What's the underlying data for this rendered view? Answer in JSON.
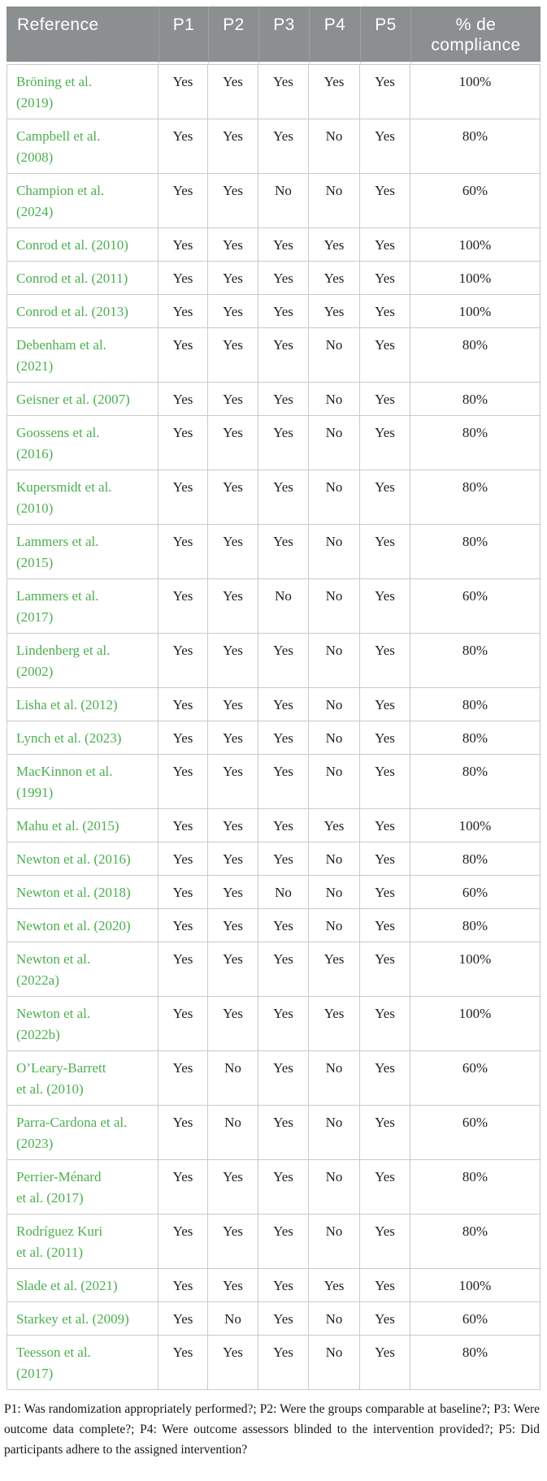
{
  "colors": {
    "header_bg": "#8b8f90",
    "header_text": "#ffffff",
    "link_green": "#4caf50",
    "cell_border": "#c9caca"
  },
  "table": {
    "columns": [
      "Reference",
      "P1",
      "P2",
      "P3",
      "P4",
      "P5",
      "% de compliance"
    ],
    "rows": [
      {
        "reference": "Bröning et al.\n(2019)",
        "values": [
          "Yes",
          "Yes",
          "Yes",
          "Yes",
          "Yes"
        ],
        "compliance": "100%"
      },
      {
        "reference": "Campbell et al.\n(2008)",
        "values": [
          "Yes",
          "Yes",
          "Yes",
          "No",
          "Yes"
        ],
        "compliance": "80%"
      },
      {
        "reference": "Champion et al.\n(2024)",
        "values": [
          "Yes",
          "Yes",
          "No",
          "No",
          "Yes"
        ],
        "compliance": "60%"
      },
      {
        "reference": "Conrod et al. (2010)",
        "values": [
          "Yes",
          "Yes",
          "Yes",
          "Yes",
          "Yes"
        ],
        "compliance": "100%"
      },
      {
        "reference": "Conrod et al. (2011)",
        "values": [
          "Yes",
          "Yes",
          "Yes",
          "Yes",
          "Yes"
        ],
        "compliance": "100%"
      },
      {
        "reference": "Conrod et al. (2013)",
        "values": [
          "Yes",
          "Yes",
          "Yes",
          "Yes",
          "Yes"
        ],
        "compliance": "100%"
      },
      {
        "reference": "Debenham et al.\n(2021)",
        "values": [
          "Yes",
          "Yes",
          "Yes",
          "No",
          "Yes"
        ],
        "compliance": "80%"
      },
      {
        "reference": "Geisner et al. (2007)",
        "values": [
          "Yes",
          "Yes",
          "Yes",
          "No",
          "Yes"
        ],
        "compliance": "80%"
      },
      {
        "reference": "Goossens et al.\n(2016)",
        "values": [
          "Yes",
          "Yes",
          "Yes",
          "No",
          "Yes"
        ],
        "compliance": "80%"
      },
      {
        "reference": "Kupersmidt et al.\n(2010)",
        "values": [
          "Yes",
          "Yes",
          "Yes",
          "No",
          "Yes"
        ],
        "compliance": "80%"
      },
      {
        "reference": "Lammers et al.\n(2015)",
        "values": [
          "Yes",
          "Yes",
          "Yes",
          "No",
          "Yes"
        ],
        "compliance": "80%"
      },
      {
        "reference": "Lammers et al.\n(2017)",
        "values": [
          "Yes",
          "Yes",
          "No",
          "No",
          "Yes"
        ],
        "compliance": "60%"
      },
      {
        "reference": "Lindenberg et al.\n(2002)",
        "values": [
          "Yes",
          "Yes",
          "Yes",
          "No",
          "Yes"
        ],
        "compliance": "80%"
      },
      {
        "reference": "Lisha et al. (2012)",
        "values": [
          "Yes",
          "Yes",
          "Yes",
          "No",
          "Yes"
        ],
        "compliance": "80%"
      },
      {
        "reference": "Lynch et al. (2023)",
        "values": [
          "Yes",
          "Yes",
          "Yes",
          "No",
          "Yes"
        ],
        "compliance": "80%"
      },
      {
        "reference": "MacKinnon et al.\n(1991)",
        "values": [
          "Yes",
          "Yes",
          "Yes",
          "No",
          "Yes"
        ],
        "compliance": "80%"
      },
      {
        "reference": "Mahu et al. (2015)",
        "values": [
          "Yes",
          "Yes",
          "Yes",
          "Yes",
          "Yes"
        ],
        "compliance": "100%"
      },
      {
        "reference": "Newton et al. (2016)",
        "values": [
          "Yes",
          "Yes",
          "Yes",
          "No",
          "Yes"
        ],
        "compliance": "80%"
      },
      {
        "reference": "Newton et al. (2018)",
        "values": [
          "Yes",
          "Yes",
          "No",
          "No",
          "Yes"
        ],
        "compliance": "60%"
      },
      {
        "reference": "Newton et al. (2020)",
        "values": [
          "Yes",
          "Yes",
          "Yes",
          "No",
          "Yes"
        ],
        "compliance": "80%"
      },
      {
        "reference": "Newton et al.\n(2022a)",
        "values": [
          "Yes",
          "Yes",
          "Yes",
          "Yes",
          "Yes"
        ],
        "compliance": "100%"
      },
      {
        "reference": "Newton et al.\n(2022b)",
        "values": [
          "Yes",
          "Yes",
          "Yes",
          "Yes",
          "Yes"
        ],
        "compliance": "100%"
      },
      {
        "reference": "O’Leary-Barrett\net al. (2010)",
        "values": [
          "Yes",
          "No",
          "Yes",
          "No",
          "Yes"
        ],
        "compliance": "60%"
      },
      {
        "reference": "Parra-Cardona et al.\n(2023)",
        "values": [
          "Yes",
          "No",
          "Yes",
          "No",
          "Yes"
        ],
        "compliance": "60%"
      },
      {
        "reference": "Perrier-Ménard\net al. (2017)",
        "values": [
          "Yes",
          "Yes",
          "Yes",
          "No",
          "Yes"
        ],
        "compliance": "80%"
      },
      {
        "reference": "Rodríguez Kuri\net al. (2011)",
        "values": [
          "Yes",
          "Yes",
          "Yes",
          "No",
          "Yes"
        ],
        "compliance": "80%"
      },
      {
        "reference": "Slade et al. (2021)",
        "values": [
          "Yes",
          "Yes",
          "Yes",
          "Yes",
          "Yes"
        ],
        "compliance": "100%"
      },
      {
        "reference": "Starkey et al. (2009)",
        "values": [
          "Yes",
          "No",
          "Yes",
          "No",
          "Yes"
        ],
        "compliance": "60%"
      },
      {
        "reference": "Teesson et al.\n(2017)",
        "values": [
          "Yes",
          "Yes",
          "Yes",
          "No",
          "Yes"
        ],
        "compliance": "80%"
      }
    ]
  },
  "footnote": "P1: Was randomization appropriately performed?; P2: Were the groups comparable at baseline?; P3: Were outcome data complete?; P4: Were outcome assessors blinded to the intervention provided?; P5: Did participants adhere to the assigned intervention?"
}
